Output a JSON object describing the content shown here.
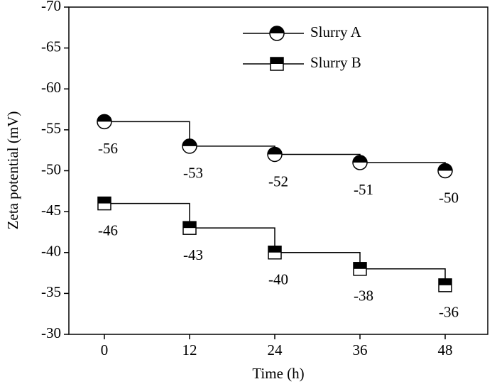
{
  "chart_data": {
    "type": "step-line",
    "xlabel": "Time (h)",
    "ylabel": "Zeta potential (mV)",
    "x": [
      0,
      12,
      24,
      36,
      48
    ],
    "series": [
      {
        "name": "Slurry A",
        "color": "#000000",
        "marker": "circle",
        "values": [
          -56,
          -53,
          -52,
          -51,
          -50
        ]
      },
      {
        "name": "Slurry B",
        "color": "#000000",
        "marker": "square",
        "values": [
          -46,
          -43,
          -40,
          -38,
          -36
        ]
      }
    ],
    "xlim": [
      -5,
      54
    ],
    "xticks": [
      0,
      12,
      24,
      36,
      48
    ],
    "ylim": [
      -30,
      -70
    ],
    "yticks": [
      -30,
      -35,
      -40,
      -45,
      -50,
      -55,
      -60,
      -65,
      -70
    ],
    "legend": "top-center",
    "step": "post"
  }
}
